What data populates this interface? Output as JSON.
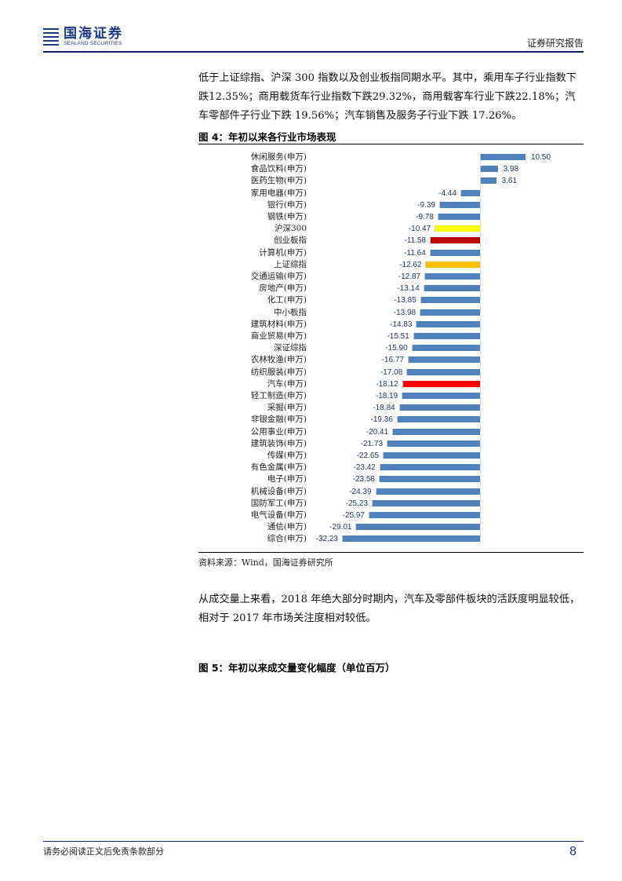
{
  "header": {
    "logo_cn": "国海证券",
    "logo_en": "SEALAND SECURITIES",
    "report_type": "证券研究报告"
  },
  "paragraphs": {
    "p1": "低于上证综指、沪深 300 指数以及创业板指同期水平。其中，乘用车子行业指数下跌12.35%；商用载货车行业指数下跌29.32%，商用载客车行业下跌22.18%；汽车零部件子行业下跌 19.56%；汽车销售及服务子行业下跌 17.26%。",
    "p2": "从成交量上来看，2018 年绝大部分时期内，汽车及零部件板块的活跃度明显较低，相对于 2017 年市场关注度相对较低。"
  },
  "figure4": {
    "title": "图 4：年初以来各行业市场表现",
    "source": "资料来源：Wind，国海证券研究所"
  },
  "figure5": {
    "title": "图 5：年初以来成交量变化幅度（单位百万）"
  },
  "colors": {
    "default_bar": "#4f81bd",
    "hs300": "#ffff00",
    "chinext": "#c00000",
    "sse_composite": "#ffc000",
    "auto": "#ff0000",
    "brand": "#1b3a8a"
  },
  "chart_data": {
    "type": "bar",
    "orientation": "horizontal",
    "title": "图 4：年初以来各行业市场表现",
    "xlabel": "",
    "ylabel": "",
    "unit": "%",
    "grid": false,
    "legend": null,
    "xlim": [
      -32.23,
      10.5
    ],
    "categories": [
      "休闲服务(申万)",
      "食品饮料(申万)",
      "医药生物(申万)",
      "家用电器(申万)",
      "银行(申万)",
      "钢铁(申万)",
      "沪深300",
      "创业板指",
      "计算机(申万)",
      "上证综指",
      "交通运输(申万)",
      "房地产(申万)",
      "化工(申万)",
      "中小板指",
      "建筑材料(申万)",
      "商业贸易(申万)",
      "深证综指",
      "农林牧渔(申万)",
      "纺织服装(申万)",
      "汽车(申万)",
      "轻工制造(申万)",
      "采掘(申万)",
      "非银金融(申万)",
      "公用事业(申万)",
      "建筑装饰(申万)",
      "传媒(申万)",
      "有色金属(申万)",
      "电子(申万)",
      "机械设备(申万)",
      "国防军工(申万)",
      "电气设备(申万)",
      "通信(申万)",
      "综合(申万)"
    ],
    "values": [
      10.5,
      3.98,
      3.61,
      -4.44,
      -9.39,
      -9.78,
      -10.47,
      -11.58,
      -11.64,
      -12.62,
      -12.87,
      -13.14,
      -13.85,
      -13.98,
      -14.83,
      -15.51,
      -15.9,
      -16.77,
      -17.08,
      -18.12,
      -18.19,
      -18.84,
      -19.36,
      -20.41,
      -21.73,
      -22.65,
      -23.42,
      -23.58,
      -24.39,
      -25.23,
      -25.97,
      -29.01,
      -32.23
    ],
    "labels": [
      "10.50",
      "3.98",
      "3.61",
      "-4.44",
      "-9.39",
      "-9.78",
      "-10.47",
      "-11.58",
      "-11.64",
      "-12.62",
      "-12.87",
      "-13.14",
      "-13.85",
      "-13.98",
      "-14.83",
      "-15.51",
      "-15.90",
      "-16.77",
      "-17.08",
      "-18.12",
      "-18.19",
      "-18.84",
      "-19.36",
      "-20.41",
      "-21.73",
      "-22.65",
      "-23.42",
      "-23.58",
      "-24.39",
      "-25.23",
      "-25.97",
      "-29.01",
      "-32.23"
    ],
    "highlights": {
      "沪深300": "#ffff00",
      "创业板指": "#c00000",
      "上证综指": "#ffc000",
      "汽车(申万)": "#ff0000"
    }
  },
  "footer": {
    "disclaimer": "请务必阅读正文后免责条款部分",
    "page_number": "8"
  }
}
